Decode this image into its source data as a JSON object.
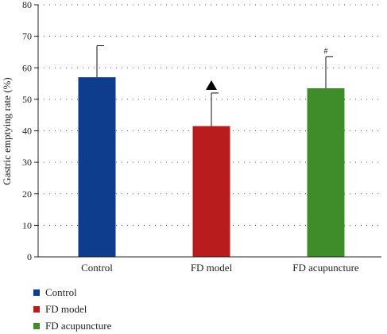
{
  "chart_data": {
    "type": "bar",
    "ylabel": "Gastric emptying rate (%)",
    "xlabel": "",
    "ylim": [
      0,
      80
    ],
    "yticks": [
      0,
      10,
      20,
      30,
      40,
      50,
      60,
      70,
      80
    ],
    "grid": "horizontal dotted",
    "categories": [
      "Control",
      "FD model",
      "FD acupuncture"
    ],
    "values": [
      57,
      41.5,
      53.5
    ],
    "error_upper": [
      10,
      10.5,
      10
    ],
    "colors": [
      "#0d3d8c",
      "#b81c1c",
      "#3f8c2a"
    ],
    "annotations": [
      "",
      "▲",
      "#"
    ],
    "legend": {
      "position": "bottom-left",
      "entries": [
        "Control",
        "FD model",
        "FD acupuncture"
      ]
    }
  }
}
